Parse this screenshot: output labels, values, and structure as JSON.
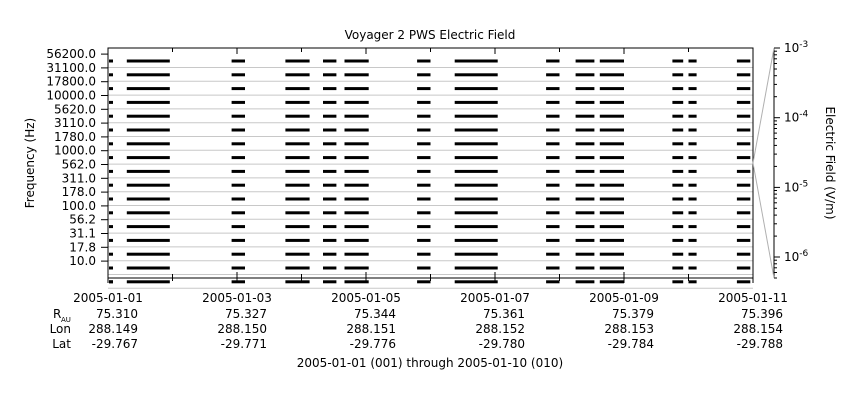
{
  "chart_data": {
    "type": "heatmap",
    "title": "Voyager 2 PWS Electric Field",
    "ylabel": "Frequency (Hz)",
    "colorbar_label": "Electric Field (V/m)",
    "colorbar_scale": "log",
    "colorbar_range": [
      5e-07,
      0.001
    ],
    "colorbar_ticks": [
      {
        "value": 0.001,
        "mant": "10",
        "exp": "-3"
      },
      {
        "value": 0.0001,
        "mant": "10",
        "exp": "-4"
      },
      {
        "value": 1e-05,
        "mant": "10",
        "exp": "-5"
      },
      {
        "value": 1e-06,
        "mant": "10",
        "exp": "-6"
      }
    ],
    "frequency_channels_hz": [
      "10.0",
      "17.8",
      "31.1",
      "56.2",
      "100.0",
      "178.0",
      "311.0",
      "562.0",
      "1000.0",
      "1780.0",
      "3110.0",
      "5620.0",
      "10000.0",
      "17800.0",
      "31100.0",
      "56200.0"
    ],
    "x_range_days": [
      "2005-01-01",
      "2005-01-11"
    ],
    "x_tick_dates": [
      "2005-01-01",
      "2005-01-03",
      "2005-01-05",
      "2005-01-07",
      "2005-01-09",
      "2005-01-11"
    ],
    "ephemeris": {
      "row_labels": {
        "rau_main": "R",
        "rau_sub": "AU",
        "lon": "Lon",
        "lat": "Lat"
      },
      "r_au": [
        "75.310",
        "75.327",
        "75.344",
        "75.361",
        "75.379",
        "75.396"
      ],
      "lon": [
        "288.149",
        "288.150",
        "288.151",
        "288.152",
        "288.153",
        "288.154"
      ],
      "lat": [
        "-29.767",
        "-29.771",
        "-29.776",
        "-29.780",
        "-29.784",
        "-29.788"
      ]
    },
    "data_intervals_days": [
      [
        "2005-01-01T07:00",
        "2005-01-01T23:00"
      ],
      [
        "2005-01-02T22:00",
        "2005-01-03T03:00"
      ],
      [
        "2005-01-03T18:00",
        "2005-01-04T03:00"
      ],
      [
        "2005-01-04T08:00",
        "2005-01-04T13:00"
      ],
      [
        "2005-01-04T16:00",
        "2005-01-05T01:00"
      ],
      [
        "2005-01-05T19:00",
        "2005-01-06T00:00"
      ],
      [
        "2005-01-06T09:00",
        "2005-01-07T01:00"
      ],
      [
        "2005-01-07T19:00",
        "2005-01-08T00:00"
      ],
      [
        "2005-01-08T06:00",
        "2005-01-08T13:00"
      ],
      [
        "2005-01-08T15:00",
        "2005-01-09T00:00"
      ],
      [
        "2005-01-09T18:00",
        "2005-01-09T22:00"
      ],
      [
        "2005-01-10T00:00",
        "2005-01-10T03:00"
      ],
      [
        "2005-01-10T18:00",
        "2005-01-10T23:00"
      ]
    ],
    "footer": "2005-01-01 (001) through 2005-01-10 (010)"
  }
}
